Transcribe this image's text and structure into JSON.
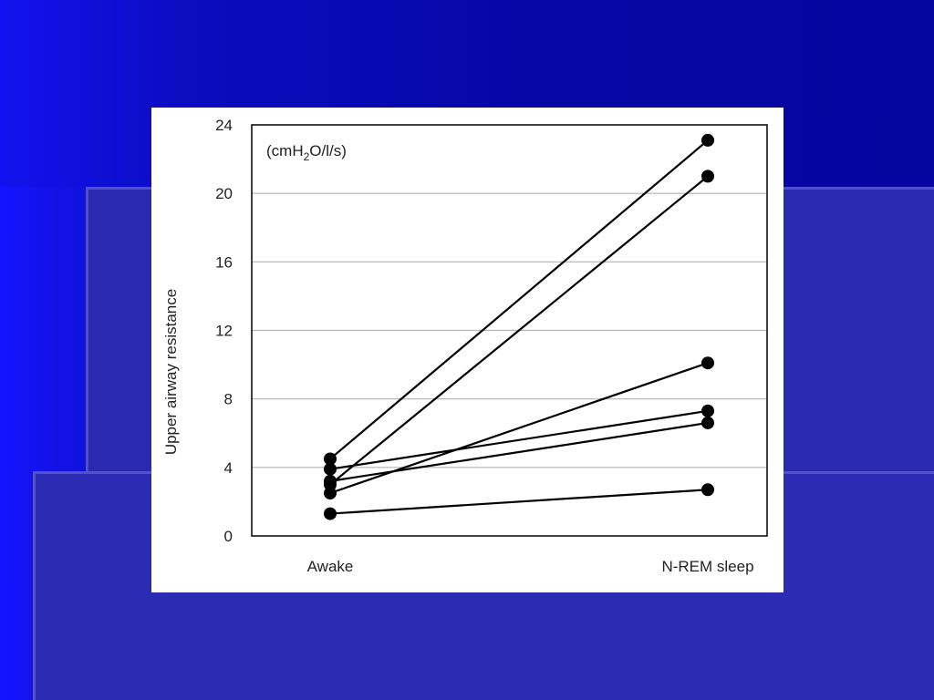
{
  "slide": {
    "background_color": "#0a0aa8",
    "band_color": "#2a2ab0"
  },
  "chart_data": {
    "type": "line",
    "x": [
      "Awake",
      "N-REM sleep"
    ],
    "ylabel": "Upper airway resistance",
    "unit_label": "(cmH2O/l/s)",
    "ylim": [
      0,
      24
    ],
    "yticks": [
      0,
      4,
      8,
      12,
      16,
      20,
      24
    ],
    "grid": true,
    "series": [
      {
        "values": [
          4.5,
          23.1
        ]
      },
      {
        "values": [
          3.0,
          21.0
        ]
      },
      {
        "values": [
          2.5,
          10.1
        ]
      },
      {
        "values": [
          3.9,
          7.3
        ]
      },
      {
        "values": [
          3.2,
          6.6
        ]
      },
      {
        "values": [
          1.3,
          2.7
        ]
      }
    ],
    "line_color": "#000000"
  }
}
